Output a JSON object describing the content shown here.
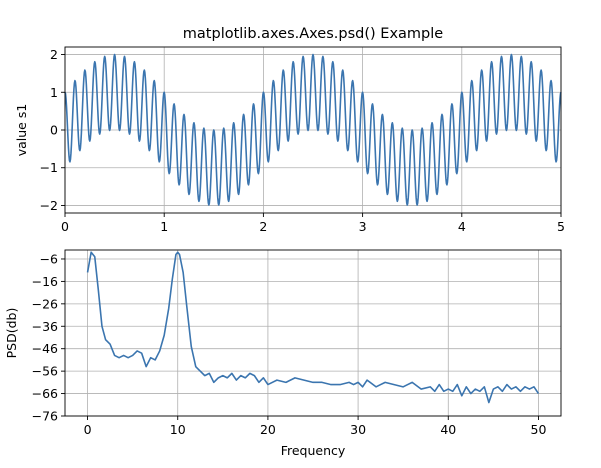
{
  "figure": {
    "title": "matplotlib.axes.Axes.psd() Example"
  },
  "colors": {
    "line": "#3b75af",
    "grid": "#b0b0b0",
    "axis": "#000000"
  },
  "chart_data": [
    {
      "type": "line",
      "title": "matplotlib.axes.Axes.psd() Example",
      "xlabel": "",
      "ylabel": "value s1",
      "xlim": [
        0,
        5
      ],
      "ylim": [
        -2.2,
        2.2
      ],
      "xticks": [
        0,
        1,
        2,
        3,
        4,
        5
      ],
      "yticks": [
        -2,
        -1,
        0,
        1,
        2
      ],
      "grid": true,
      "series": [
        {
          "function": "sin(2*pi*x/2) + cos(2*pi*10*x)",
          "x_range": [
            0,
            5
          ],
          "samples": 1000
        }
      ]
    },
    {
      "type": "line",
      "title": "",
      "xlabel": "Frequency",
      "ylabel": "PSD(db)",
      "xlim": [
        -2.5,
        52.5
      ],
      "ylim": [
        -76,
        -2
      ],
      "xticks": [
        0,
        10,
        20,
        30,
        40,
        50
      ],
      "yticks": [
        -76,
        -66,
        -56,
        -46,
        -36,
        -26,
        -16,
        -6
      ],
      "grid": true,
      "series": [
        {
          "x": [
            0,
            0.4,
            0.8,
            1.2,
            1.6,
            2.0,
            2.5,
            3.0,
            3.5,
            4.0,
            4.5,
            5.0,
            5.5,
            6.0,
            6.5,
            7.0,
            7.5,
            8.0,
            8.5,
            9.0,
            9.4,
            9.8,
            10.0,
            10.2,
            10.6,
            11.0,
            11.5,
            12.0,
            12.5,
            13.0,
            13.5,
            14.0,
            14.5,
            15.0,
            15.5,
            16.0,
            16.5,
            17.0,
            17.5,
            18.0,
            18.5,
            19.0,
            19.5,
            20.0,
            21.0,
            22.0,
            23.0,
            24.0,
            25.0,
            26.0,
            27.0,
            28.0,
            29.0,
            29.5,
            30.0,
            30.5,
            31.0,
            32.0,
            33.0,
            34.0,
            35.0,
            35.5,
            36.0,
            37.0,
            38.0,
            38.5,
            39.0,
            39.5,
            40.0,
            40.5,
            41.0,
            41.5,
            42.0,
            42.5,
            43.0,
            43.5,
            44.0,
            44.5,
            45.0,
            45.5,
            46.0,
            46.5,
            47.0,
            47.5,
            48.0,
            48.5,
            49.0,
            49.5,
            50.0
          ],
          "values": [
            -12,
            -3,
            -5,
            -20,
            -36,
            -42,
            -44,
            -49,
            -50,
            -49,
            -50,
            -49,
            -47,
            -48,
            -54,
            -50,
            -51,
            -47,
            -40,
            -28,
            -15,
            -4,
            -3,
            -4,
            -12,
            -27,
            -45,
            -54,
            -56,
            -58,
            -57,
            -61,
            -59,
            -58,
            -59,
            -57,
            -60,
            -58,
            -59,
            -57,
            -58,
            -61,
            -59,
            -62,
            -60,
            -61,
            -59,
            -60,
            -61,
            -61,
            -62,
            -62,
            -61,
            -62,
            -61,
            -63,
            -60,
            -63,
            -61,
            -62,
            -63,
            -62,
            -61,
            -64,
            -63,
            -65,
            -62,
            -65,
            -64,
            -65,
            -62,
            -67,
            -63,
            -66,
            -64,
            -65,
            -63,
            -70,
            -64,
            -63,
            -65,
            -62,
            -64,
            -63,
            -65,
            -63,
            -64,
            -63,
            -66
          ]
        }
      ]
    }
  ]
}
